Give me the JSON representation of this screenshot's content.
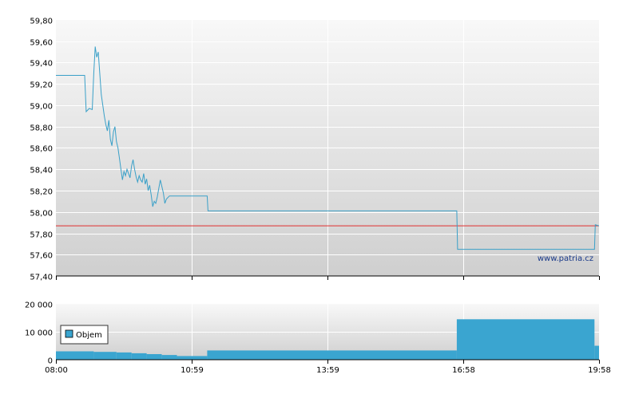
{
  "colors": {
    "price_line": "#3aa0c8",
    "reference_line": "#e03030",
    "volume_fill": "#3aa5d0",
    "panel_top": "#f8f8f8",
    "panel_bottom": "#cfcfcf",
    "grid": "#ffffff"
  },
  "watermark": "www.patria.cz",
  "chart_data": [
    {
      "type": "line",
      "title": "",
      "x_axis": {
        "ticks": [
          "08:00",
          "10:59",
          "13:59",
          "16:58",
          "19:58"
        ],
        "range": [
          "08:00",
          "19:58"
        ]
      },
      "y_axis": {
        "ticks": [
          "57,40",
          "57,60",
          "57,80",
          "58,00",
          "58,20",
          "58,40",
          "58,60",
          "58,80",
          "59,00",
          "59,20",
          "59,40",
          "59,60",
          "59,80"
        ],
        "range": [
          57.4,
          59.8
        ]
      },
      "grid": true,
      "reference_line": 57.87,
      "series": [
        {
          "points": [
            [
              "08:00",
              59.28
            ],
            [
              "08:38",
              59.28
            ],
            [
              "08:40",
              58.94
            ],
            [
              "08:44",
              58.97
            ],
            [
              "08:48",
              58.96
            ],
            [
              "08:50",
              59.3
            ],
            [
              "08:52",
              59.55
            ],
            [
              "08:54",
              59.45
            ],
            [
              "08:56",
              59.5
            ],
            [
              "08:58",
              59.3
            ],
            [
              "09:00",
              59.1
            ],
            [
              "09:02",
              59.0
            ],
            [
              "09:04",
              58.9
            ],
            [
              "09:06",
              58.82
            ],
            [
              "09:08",
              58.76
            ],
            [
              "09:10",
              58.86
            ],
            [
              "09:12",
              58.68
            ],
            [
              "09:14",
              58.62
            ],
            [
              "09:16",
              58.75
            ],
            [
              "09:18",
              58.8
            ],
            [
              "09:20",
              58.66
            ],
            [
              "09:22",
              58.6
            ],
            [
              "09:24",
              58.5
            ],
            [
              "09:26",
              58.4
            ],
            [
              "09:28",
              58.3
            ],
            [
              "09:30",
              58.38
            ],
            [
              "09:32",
              58.34
            ],
            [
              "09:34",
              58.4
            ],
            [
              "09:36",
              58.36
            ],
            [
              "09:38",
              58.32
            ],
            [
              "09:40",
              58.43
            ],
            [
              "09:42",
              58.49
            ],
            [
              "09:44",
              58.4
            ],
            [
              "09:46",
              58.33
            ],
            [
              "09:48",
              58.28
            ],
            [
              "09:50",
              58.34
            ],
            [
              "09:52",
              58.3
            ],
            [
              "09:54",
              58.28
            ],
            [
              "09:56",
              58.36
            ],
            [
              "09:58",
              58.26
            ],
            [
              "10:00",
              58.31
            ],
            [
              "10:02",
              58.2
            ],
            [
              "10:04",
              58.25
            ],
            [
              "10:06",
              58.16
            ],
            [
              "10:08",
              58.05
            ],
            [
              "10:10",
              58.1
            ],
            [
              "10:12",
              58.08
            ],
            [
              "10:14",
              58.14
            ],
            [
              "10:16",
              58.22
            ],
            [
              "10:18",
              58.3
            ],
            [
              "10:20",
              58.24
            ],
            [
              "10:22",
              58.18
            ],
            [
              "10:24",
              58.08
            ],
            [
              "10:26",
              58.12
            ],
            [
              "10:30",
              58.15
            ],
            [
              "11:20",
              58.15
            ],
            [
              "11:21",
              58.01
            ],
            [
              "16:50",
              58.01
            ],
            [
              "16:51",
              57.65
            ],
            [
              "19:52",
              57.65
            ],
            [
              "19:53",
              57.88
            ],
            [
              "19:58",
              57.87
            ]
          ]
        }
      ]
    },
    {
      "type": "area",
      "title": "",
      "x_axis": {
        "ticks": [
          "08:00",
          "10:59",
          "13:59",
          "16:58",
          "19:58"
        ],
        "range": [
          "08:00",
          "19:58"
        ]
      },
      "y_axis": {
        "ticks": [
          "0",
          "10 000",
          "20 000"
        ],
        "range": [
          0,
          20000
        ]
      },
      "grid": true,
      "legend": {
        "position": "left",
        "entries": [
          "Objem"
        ]
      },
      "series": [
        {
          "name": "Objem",
          "steps": [
            [
              "08:00",
              3000
            ],
            [
              "08:50",
              2800
            ],
            [
              "09:20",
              2600
            ],
            [
              "09:40",
              2300
            ],
            [
              "10:00",
              2000
            ],
            [
              "10:20",
              1700
            ],
            [
              "10:40",
              1300
            ],
            [
              "11:20",
              3300
            ],
            [
              "16:50",
              14500
            ],
            [
              "19:52",
              5000
            ],
            [
              "19:58",
              5000
            ]
          ]
        }
      ]
    }
  ]
}
